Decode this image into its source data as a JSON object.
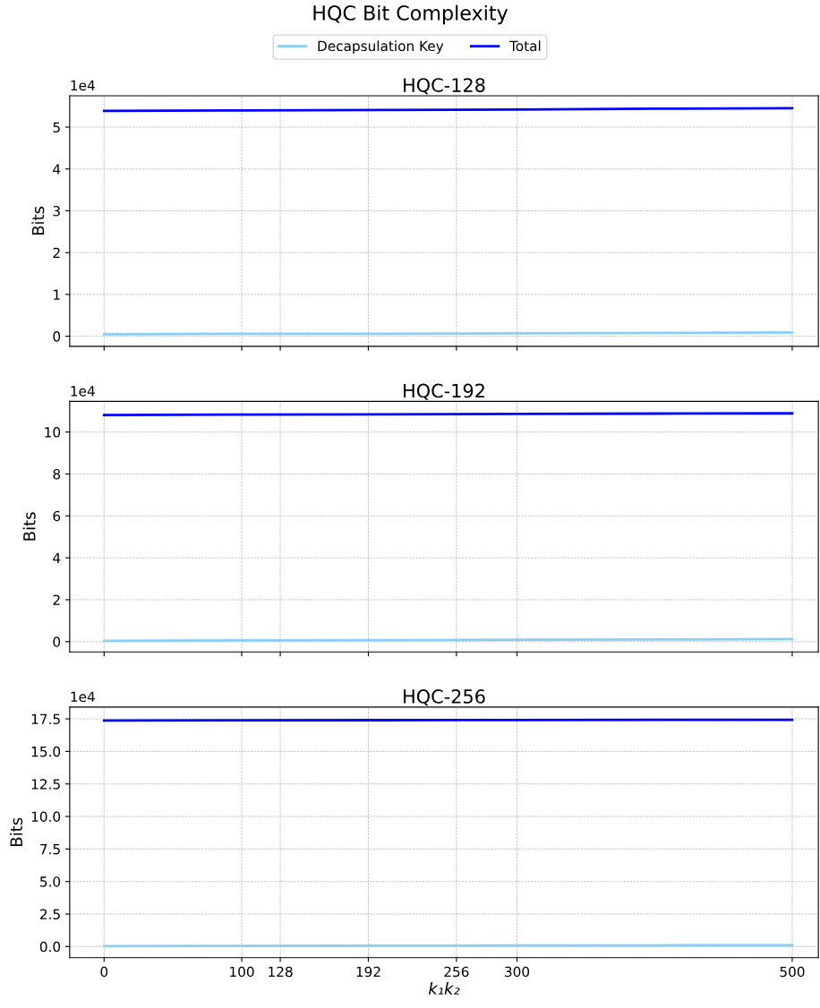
{
  "chart_data": [
    {
      "type": "line",
      "title": "HQC Bit Complexity",
      "subtitle": "HQC-128",
      "ylabel": "Bits",
      "annotations": [
        "1e4"
      ],
      "legend": "top",
      "grid": true,
      "tick_labels": "y",
      "xlim": [
        -25,
        519
      ],
      "xticks": [
        0,
        100,
        128,
        192,
        256,
        300,
        500
      ],
      "ylim": [
        -0.24,
        5.75
      ],
      "yticks": [
        0,
        1,
        2,
        3,
        4,
        5
      ],
      "series": [
        {
          "name": "Decapsulation Key",
          "color": "#87cefa",
          "x": [
            0,
            100,
            200,
            300,
            400,
            500
          ],
          "values": [
            0.05,
            0.06,
            0.06,
            0.07,
            0.08,
            0.09
          ]
        },
        {
          "name": "Total",
          "color": "#0000ff",
          "x": [
            0,
            100,
            200,
            300,
            400,
            500
          ],
          "values": [
            5.39,
            5.4,
            5.41,
            5.42,
            5.44,
            5.45
          ]
        }
      ]
    },
    {
      "type": "line",
      "title": "HQC-192",
      "ylabel": "Bits",
      "annotations": [
        "1e4"
      ],
      "grid": true,
      "tick_labels": "y",
      "xlim": [
        -25,
        519
      ],
      "xticks": [
        0,
        100,
        128,
        192,
        256,
        300,
        500
      ],
      "ylim": [
        -0.49,
        11.46
      ],
      "yticks": [
        0,
        2,
        4,
        6,
        8,
        10
      ],
      "series": [
        {
          "color": "#87cefa",
          "x": [
            0,
            100,
            200,
            300,
            400,
            500
          ],
          "values": [
            0.04,
            0.06,
            0.07,
            0.09,
            0.1,
            0.12
          ]
        },
        {
          "color": "#0000ff",
          "x": [
            0,
            100,
            200,
            300,
            400,
            500
          ],
          "values": [
            10.81,
            10.83,
            10.84,
            10.86,
            10.88,
            10.89
          ]
        }
      ]
    },
    {
      "type": "line",
      "title": "HQC-256",
      "xlabel": "k₁k₂",
      "ylabel": "Bits",
      "annotations": [
        "1e4"
      ],
      "grid": true,
      "xlim": [
        -25,
        519
      ],
      "xticks": [
        0,
        100,
        128,
        192,
        256,
        300,
        500
      ],
      "ylim": [
        -0.85,
        18.41
      ],
      "yticks": [
        {
          "value": 0,
          "label": "0.0"
        },
        {
          "value": 2.5,
          "label": "2.5"
        },
        {
          "value": 5,
          "label": "5.0"
        },
        {
          "value": 7.5,
          "label": "7.5"
        },
        {
          "value": 10,
          "label": "10.0"
        },
        {
          "value": 12.5,
          "label": "12.5"
        },
        {
          "value": 15,
          "label": "15.0"
        },
        {
          "value": 17.5,
          "label": "17.5"
        }
      ],
      "series": [
        {
          "color": "#87cefa",
          "x": [
            0,
            100,
            200,
            300,
            400,
            500
          ],
          "values": [
            0.04,
            0.05,
            0.06,
            0.08,
            0.09,
            0.1
          ]
        },
        {
          "color": "#0000ff",
          "x": [
            0,
            100,
            200,
            300,
            400,
            500
          ],
          "values": [
            17.38,
            17.39,
            17.4,
            17.41,
            17.42,
            17.43
          ]
        }
      ]
    }
  ]
}
